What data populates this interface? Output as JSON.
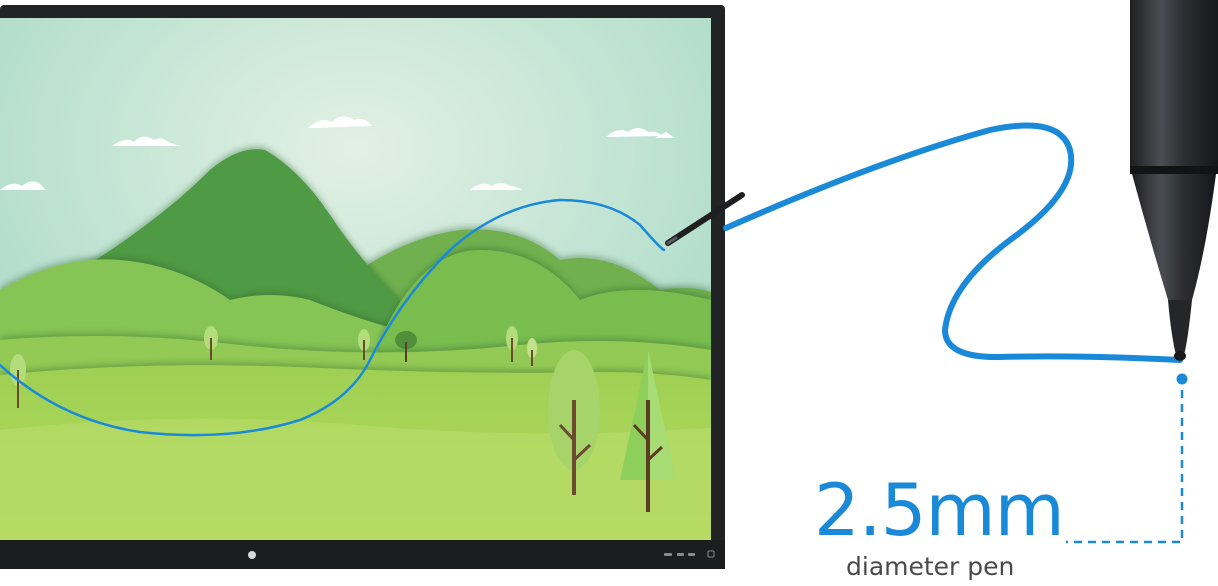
{
  "spec": {
    "value": "2.5mm",
    "caption": "diameter pen"
  },
  "colors": {
    "accent": "#1a8ad8",
    "display_bezel": "#222325",
    "pen_body": "#2b2d31",
    "sky_top": "#a8d9c7",
    "sky_glow": "#d8ece2",
    "mountain": "#4f9a45",
    "hill_front": "#a9d55a"
  },
  "icons": {
    "display_logo": "round-logo-icon",
    "front_panel_buttons": "control-buttons-icon"
  }
}
